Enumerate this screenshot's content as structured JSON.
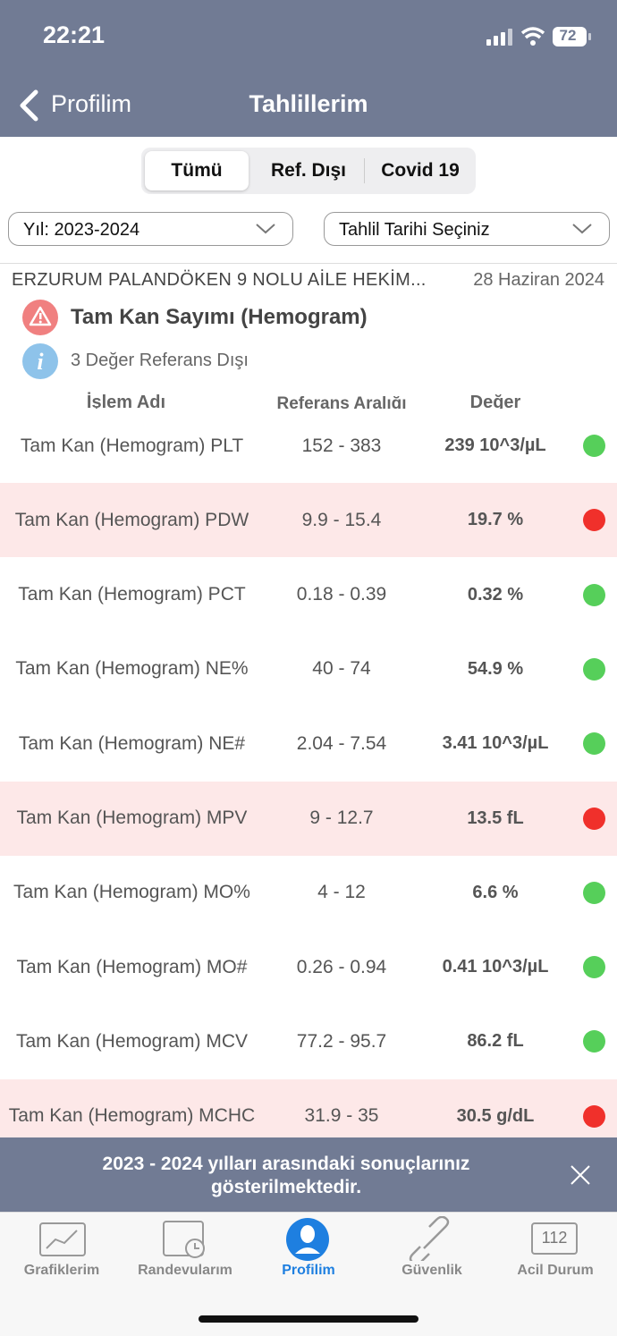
{
  "status_bar": {
    "time": "22:21",
    "battery": "72"
  },
  "nav": {
    "back": "Profilim",
    "title": "Tahlillerim"
  },
  "tabs": {
    "items": [
      "Tümü",
      "Ref. Dışı",
      "Covid 19"
    ],
    "selected": 0
  },
  "filters": {
    "year": "Yıl: 2023-2024",
    "date": "Tahlil Tarihi Seçiniz"
  },
  "result": {
    "institution": "ERZURUM PALANDÖKEN 9 NOLU AİLE HEKİM...",
    "date": "28 Haziran 2024",
    "test_name": "Tam Kan Sayımı (Hemogram)",
    "note": "3 Değer Referans Dışı"
  },
  "table": {
    "headers": [
      "İşlem Adı",
      "Referans Aralığı",
      "Değer"
    ],
    "rows": [
      {
        "name": "Tam Kan (Hemogram) PLT",
        "range": "152 - 383",
        "value": "239 10^3/µL",
        "abnormal": false
      },
      {
        "name": "Tam Kan (Hemogram) PDW",
        "range": "9.9 - 15.4",
        "value": "19.7 %",
        "abnormal": true
      },
      {
        "name": "Tam Kan (Hemogram) PCT",
        "range": "0.18 - 0.39",
        "value": "0.32 %",
        "abnormal": false
      },
      {
        "name": "Tam Kan (Hemogram) NE%",
        "range": "40 - 74",
        "value": "54.9 %",
        "abnormal": false
      },
      {
        "name": "Tam Kan (Hemogram) NE#",
        "range": "2.04 - 7.54",
        "value": "3.41 10^3/µL",
        "abnormal": false
      },
      {
        "name": "Tam Kan (Hemogram) MPV",
        "range": "9 - 12.7",
        "value": "13.5 fL",
        "abnormal": true
      },
      {
        "name": "Tam Kan (Hemogram) MO%",
        "range": "4 - 12",
        "value": "6.6 %",
        "abnormal": false
      },
      {
        "name": "Tam Kan (Hemogram) MO#",
        "range": "0.26 - 0.94",
        "value": "0.41 10^3/µL",
        "abnormal": false
      },
      {
        "name": "Tam Kan (Hemogram) MCV",
        "range": "77.2 - 95.7",
        "value": "86.2 fL",
        "abnormal": false
      },
      {
        "name": "Tam Kan (Hemogram) MCHC",
        "range": "31.9 - 35",
        "value": "30.5 g/dL",
        "abnormal": true
      }
    ]
  },
  "banner": "2023 - 2024 yılları arasındaki sonuçlarınız gösterilmektedir.",
  "tab_bar": {
    "items": [
      "Grafiklerim",
      "Randevularım",
      "Profilim",
      "Güvenlik",
      "Acil Durum"
    ],
    "selected": 2,
    "emergency_icon": "112"
  }
}
